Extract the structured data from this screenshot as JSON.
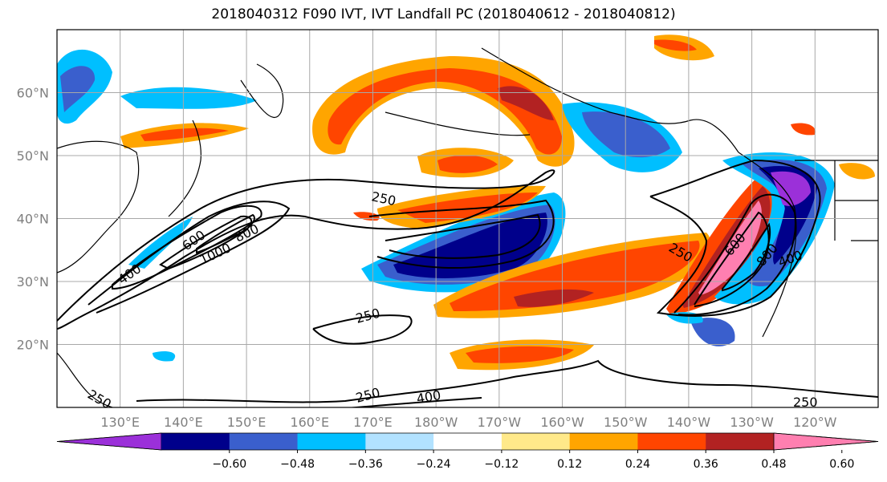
{
  "title": "2018040312 F090 IVT, IVT Landfall PC (2018040612 - 2018040812)",
  "map": {
    "projection": "equirectangular",
    "lon_range": [
      120,
      250
    ],
    "lat_range": [
      10,
      70
    ],
    "lat_labels": [
      "20°N",
      "30°N",
      "40°N",
      "50°N",
      "60°N"
    ],
    "lon_labels": [
      "130°E",
      "140°E",
      "150°E",
      "160°E",
      "170°E",
      "180°W",
      "170°W",
      "160°W",
      "150°W",
      "140°W",
      "130°W",
      "120°W"
    ],
    "gridlines": true
  },
  "ivt_contours": {
    "levels": [
      250,
      400,
      600,
      800,
      1000
    ],
    "labels": [
      {
        "text": "250"
      },
      {
        "text": "250"
      },
      {
        "text": "250"
      },
      {
        "text": "250"
      },
      {
        "text": "250"
      },
      {
        "text": "250"
      },
      {
        "text": "400"
      },
      {
        "text": "400"
      },
      {
        "text": "400"
      },
      {
        "text": "600"
      },
      {
        "text": "600"
      },
      {
        "text": "800"
      },
      {
        "text": "800"
      },
      {
        "text": "1000"
      }
    ]
  },
  "colorbar": {
    "ticks": [
      "−0.60",
      "−0.48",
      "−0.36",
      "−0.24",
      "−0.12",
      "0.12",
      "0.24",
      "0.36",
      "0.48",
      "0.60"
    ],
    "colors": [
      "#9b30d9",
      "#00008b",
      "#3a5fcd",
      "#00bfff",
      "#b2e2ff",
      "#ffffff",
      "#ffe98a",
      "#ffa500",
      "#ff4500",
      "#b22222",
      "#ff7fb0"
    ],
    "extend": "both"
  }
}
